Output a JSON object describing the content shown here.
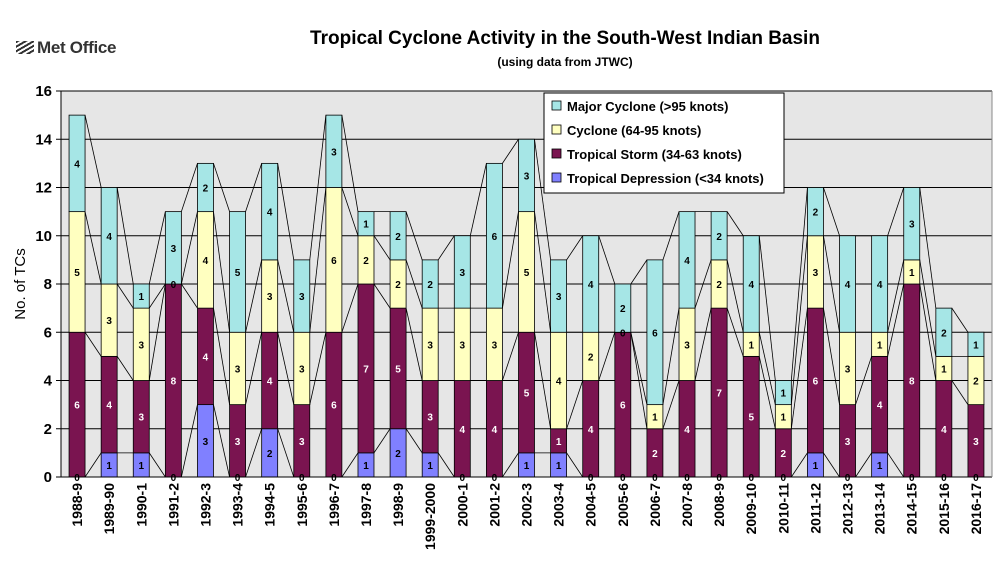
{
  "brand": {
    "logo_text": "Met Office"
  },
  "chart_data": {
    "type": "bar",
    "stacked": true,
    "title": "Tropical Cyclone Activity in the South-West Indian Basin",
    "subtitle": "(using data from JTWC)",
    "ylabel": "No. of TCs",
    "xlabel": "",
    "ylim": [
      0,
      16
    ],
    "yticks": [
      0,
      2,
      4,
      6,
      8,
      10,
      12,
      14,
      16
    ],
    "grid": true,
    "legend_position": "top-right",
    "categories": [
      "1988-9",
      "1989-90",
      "1990-1",
      "1991-2",
      "1992-3",
      "1993-4",
      "1994-5",
      "1995-6",
      "1996-7",
      "1997-8",
      "1998-9",
      "1999-2000",
      "2000-1",
      "2001-2",
      "2002-3",
      "2003-4",
      "2004-5",
      "2005-6",
      "2006-7",
      "2007-8",
      "2008-9",
      "2009-10",
      "2010-11",
      "2011-12",
      "2012-13",
      "2013-14",
      "2014-15",
      "2015-16",
      "2016-17"
    ],
    "series": [
      {
        "name": "Tropical Depression (<34 knots)",
        "color": "#8080ff",
        "values": [
          0,
          1,
          1,
          0,
          3,
          0,
          2,
          0,
          0,
          1,
          2,
          1,
          0,
          0,
          1,
          1,
          0,
          0,
          0,
          0,
          0,
          0,
          0,
          1,
          0,
          1,
          0,
          0,
          0
        ]
      },
      {
        "name": "Tropical Storm (34-63 knots)",
        "color": "#7a1450",
        "values": [
          6,
          4,
          3,
          8,
          4,
          3,
          4,
          3,
          6,
          7,
          5,
          3,
          4,
          4,
          5,
          1,
          4,
          6,
          2,
          4,
          7,
          5,
          2,
          6,
          3,
          4,
          8,
          4,
          3
        ]
      },
      {
        "name": "Cyclone (64-95 knots)",
        "color": "#ffffc0",
        "values": [
          5,
          3,
          3,
          0,
          4,
          3,
          3,
          3,
          6,
          2,
          2,
          3,
          3,
          3,
          5,
          4,
          2,
          0,
          1,
          3,
          2,
          1,
          1,
          3,
          3,
          1,
          1,
          1,
          2
        ]
      },
      {
        "name": "Major Cyclone (>95 knots)",
        "color": "#a6e6e6",
        "values": [
          4,
          4,
          1,
          3,
          2,
          5,
          4,
          3,
          3,
          1,
          2,
          2,
          3,
          6,
          3,
          3,
          4,
          2,
          6,
          4,
          2,
          4,
          1,
          2,
          4,
          4,
          3,
          2,
          1
        ]
      }
    ]
  }
}
